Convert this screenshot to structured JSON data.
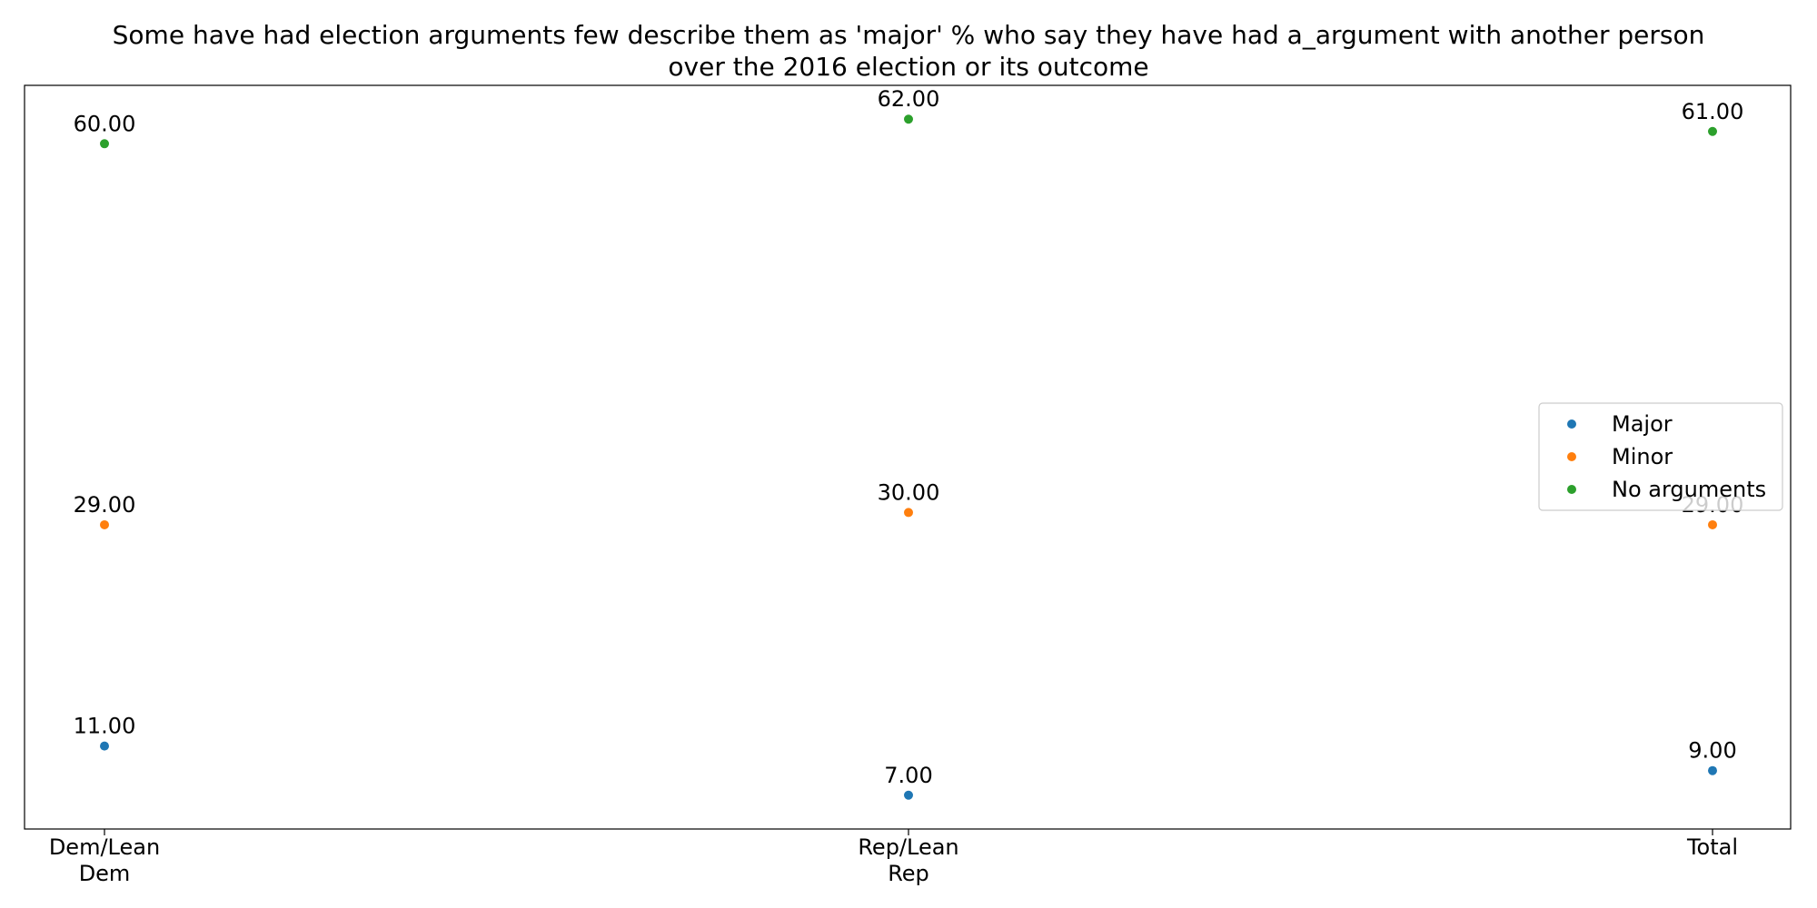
{
  "chart_data": {
    "type": "scatter",
    "title_lines": [
      "Some have had election arguments few describe them as 'major' % who say they have had a_argument with another person",
      "over the 2016 election or its outcome"
    ],
    "categories": [
      [
        "Dem/Lean",
        "Dem"
      ],
      [
        "Rep/Lean",
        "Rep"
      ],
      [
        "Total"
      ]
    ],
    "series": [
      {
        "name": "Major",
        "color": "#1f77b4",
        "values": [
          11,
          7,
          9
        ],
        "labels": [
          "11.00",
          "7.00",
          "9.00"
        ]
      },
      {
        "name": "Minor",
        "color": "#ff7f0e",
        "values": [
          29,
          30,
          29
        ],
        "labels": [
          "29.00",
          "30.00",
          "29.00"
        ]
      },
      {
        "name": "No arguments",
        "color": "#2ca02c",
        "values": [
          60,
          62,
          61
        ],
        "labels": [
          "60.00",
          "62.00",
          "61.00"
        ]
      }
    ],
    "ylim": [
      4.25,
      64.75
    ],
    "grid": false,
    "legend_position": "center-right"
  }
}
